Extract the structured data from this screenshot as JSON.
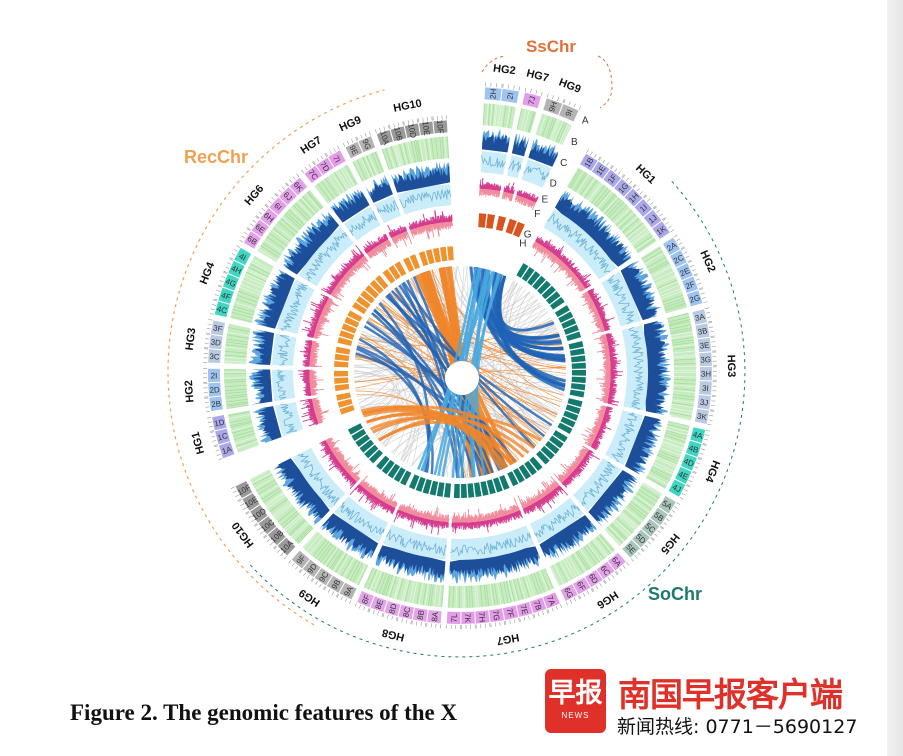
{
  "titles": {
    "ss": "SsChr",
    "rec": "RecChr",
    "so": "SoChr"
  },
  "track_letters": [
    "A",
    "B",
    "C",
    "D",
    "E",
    "F",
    "G",
    "H"
  ],
  "subgenomes": {
    "rec": [
      {
        "hg": "HG1",
        "chrs": [
          "1A",
          "1C",
          "1D"
        ]
      },
      {
        "hg": "HG2",
        "chrs": [
          "2B",
          "2D",
          "2I"
        ]
      },
      {
        "hg": "HG3",
        "chrs": [
          "3C",
          "3D",
          "3F"
        ]
      },
      {
        "hg": "HG4",
        "chrs": [
          "4C",
          "4F",
          "4G",
          "4H",
          "4I"
        ]
      },
      {
        "hg": "HG6",
        "chrs": [
          "6B",
          "6E",
          "6H",
          "6I",
          "6J",
          "6K"
        ]
      },
      {
        "hg": "HG7",
        "chrs": [
          "7C",
          "7D",
          "7I"
        ]
      },
      {
        "hg": "HG9",
        "chrs": [
          "9E",
          "9G"
        ]
      },
      {
        "hg": "HG10",
        "chrs": [
          "10A",
          "10B",
          "10D",
          "10E",
          "10F"
        ]
      }
    ],
    "ss": [
      {
        "hg": "HG2",
        "chrs": [
          "2H",
          "2I"
        ]
      },
      {
        "hg": "HG7",
        "chrs": [
          "7J"
        ]
      },
      {
        "hg": "HG9",
        "chrs": [
          "9H",
          "9I"
        ]
      }
    ],
    "so": [
      {
        "hg": "HG1",
        "chrs": [
          "1B",
          "1E",
          "1F",
          "1G",
          "1H",
          "1I",
          "1J",
          "1K"
        ]
      },
      {
        "hg": "HG2",
        "chrs": [
          "2A",
          "2C",
          "2E",
          "2F",
          "2G"
        ]
      },
      {
        "hg": "HG3",
        "chrs": [
          "3A",
          "3B",
          "3E",
          "3G",
          "3H",
          "3I",
          "3J",
          "3K"
        ]
      },
      {
        "hg": "HG4",
        "chrs": [
          "4A",
          "4B",
          "4D",
          "4E",
          "4J"
        ]
      },
      {
        "hg": "HG5",
        "chrs": [
          "5A",
          "5B",
          "5C",
          "5D",
          "5E"
        ]
      },
      {
        "hg": "HG6",
        "chrs": [
          "6A",
          "6C",
          "6D",
          "6F",
          "6G"
        ]
      },
      {
        "hg": "HG7",
        "chrs": [
          "7A",
          "7B",
          "7E",
          "7F",
          "7G",
          "7H",
          "7K",
          "7L"
        ]
      },
      {
        "hg": "HG8",
        "chrs": [
          "8A",
          "8B",
          "8C",
          "8D",
          "8E",
          "8F"
        ]
      },
      {
        "hg": "HG9",
        "chrs": [
          "9A",
          "9B",
          "9C",
          "9D",
          "9F"
        ]
      },
      {
        "hg": "HG10",
        "chrs": [
          "10A",
          "10B",
          "10C",
          "10D",
          "10E",
          "10F"
        ]
      }
    ]
  },
  "colors": {
    "HG1": "#aaa8ea",
    "HG2": "#9fc3f0",
    "HG3": "#b9cbe2",
    "HG4": "#3fd6c2",
    "HG5": "#a9c6ba",
    "HG6": "#e4a0ea",
    "HG7": "#e49cea",
    "HG8": "#e4a4ea",
    "HG9": "#b4b4b4",
    "HG10": "#9a9a9a",
    "title_rec": "#f0a050",
    "title_ss": "#e07238",
    "title_so": "#1b7a6e",
    "track_a": "#c8ecc2",
    "track_b_dark": "#1d4e9a",
    "track_b_light": "#5ea6df",
    "track_c_bg": "#cbecf9",
    "track_c_line": "#6fb4d6",
    "track_d": "#d63d8f",
    "track_e": "#f08c9c",
    "block_rec": "#f0922e",
    "block_so": "#137a6e",
    "block_ss": "#d9541e",
    "link_gray": "#c9c9c9",
    "link_orange": "#f0862a",
    "link_blue": "#1f63b5",
    "link_lightblue": "#48a8e0"
  },
  "caption": "Figure 2. The genomic features of the X",
  "watermark": {
    "logo_text": "早报",
    "logo_sub": "NEWS",
    "title": "南国早报客户端",
    "phone": "新闻热线: 0771－5690127"
  }
}
